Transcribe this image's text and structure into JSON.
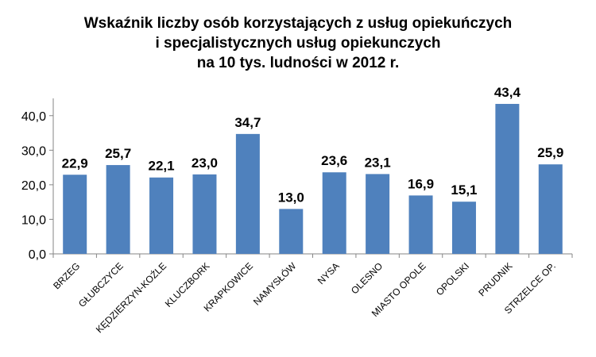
{
  "chart_data": {
    "type": "bar",
    "title_lines": [
      "Wskaźnik liczby osób korzystających z usług opiekuńczych",
      "i specjalistycznych usług opiekunczych",
      "na 10 tys. ludności w 2012 r."
    ],
    "categories": [
      "BRZEG",
      "GŁUBCZYCE",
      "KĘDZIERZYN-KOŹLE",
      "KLUCZBORK",
      "KRAPKOWICE",
      "NAMYSŁÓW",
      "NYSA",
      "OLESNO",
      "MIASTO OPOLE",
      "OPOLSKI",
      "PRUDNIK",
      "STRZELCE OP."
    ],
    "values": [
      22.9,
      25.7,
      22.1,
      23.0,
      34.7,
      13.0,
      23.6,
      23.1,
      16.9,
      15.1,
      43.4,
      25.9
    ],
    "data_labels": [
      "22,9",
      "25,7",
      "22,1",
      "23,0",
      "34,7",
      "13,0",
      "23,6",
      "23,1",
      "16,9",
      "15,1",
      "43,4",
      "25,9"
    ],
    "y_ticks": [
      0,
      10,
      20,
      30,
      40
    ],
    "y_tick_labels": [
      "0,0",
      "10,0",
      "20,0",
      "30,0",
      "40,0"
    ],
    "ylim": [
      0,
      45
    ],
    "grid": false,
    "bar_color": "#4f81bd",
    "axis_color": "#868686"
  }
}
